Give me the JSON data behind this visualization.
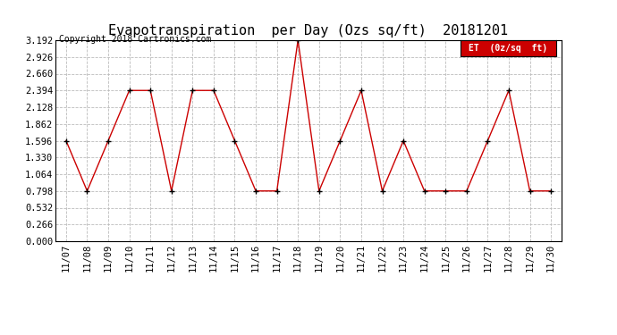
{
  "title": "Evapotranspiration  per Day (Ozs sq/ft)  20181201",
  "copyright": "Copyright 2018 Cartronics.com",
  "legend_label": "ET  (0z/sq  ft)",
  "dates": [
    "11/07",
    "11/08",
    "11/09",
    "11/10",
    "11/11",
    "11/12",
    "11/13",
    "11/14",
    "11/15",
    "11/16",
    "11/17",
    "11/18",
    "11/19",
    "11/20",
    "11/21",
    "11/22",
    "11/23",
    "11/24",
    "11/25",
    "11/26",
    "11/27",
    "11/28",
    "11/29",
    "11/30"
  ],
  "values": [
    1.596,
    0.798,
    1.596,
    2.394,
    2.394,
    0.798,
    2.394,
    2.394,
    1.596,
    0.798,
    0.798,
    3.192,
    0.798,
    1.596,
    2.394,
    0.798,
    1.596,
    0.798,
    0.798,
    0.798,
    1.596,
    2.394,
    0.798,
    0.798
  ],
  "ylim": [
    0.0,
    3.192
  ],
  "yticks": [
    0.0,
    0.266,
    0.532,
    0.798,
    1.064,
    1.33,
    1.596,
    1.862,
    2.128,
    2.394,
    2.66,
    2.926,
    3.192
  ],
  "line_color": "#cc0000",
  "marker_color": "#000000",
  "legend_bg": "#cc0000",
  "legend_text_color": "#ffffff",
  "grid_color": "#bbbbbb",
  "background_color": "#ffffff",
  "title_fontsize": 11,
  "copyright_fontsize": 7,
  "tick_fontsize": 7.5,
  "legend_fontsize": 7
}
